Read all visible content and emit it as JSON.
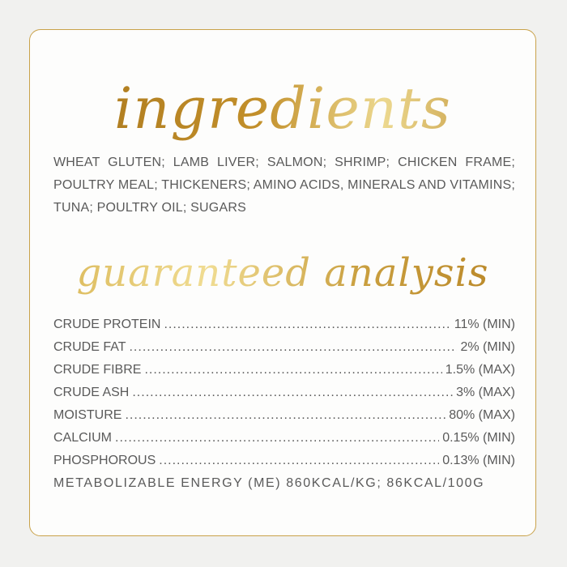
{
  "ingredients": {
    "title": "ingredients",
    "text": "WHEAT GLUTEN; LAMB LIVER; SALMON; SHRIMP; CHICKEN FRAME; POULTRY MEAL; THICKENERS; AMINO ACIDS, MINERALS AND VITAMINS; TUNA; POULTRY OIL; SUGARS"
  },
  "analysis": {
    "title": "guaranteed analysis",
    "rows": [
      {
        "label": "CRUDE PROTEIN",
        "value": "11% (MIN)"
      },
      {
        "label": "CRUDE FAT",
        "value": "2% (MIN)"
      },
      {
        "label": "CRUDE FIBRE",
        "value": "1.5% (MAX)"
      },
      {
        "label": "CRUDE ASH",
        "value": "3% (MAX)"
      },
      {
        "label": "MOISTURE",
        "value": "80% (MAX)"
      },
      {
        "label": "CALCIUM",
        "value": "0.15% (MIN)"
      },
      {
        "label": "PHOSPHOROUS",
        "value": "0.13% (MIN)"
      }
    ],
    "energy": "METABOLIZABLE ENERGY (ME) 860KCAL/KG; 86KCAL/100G"
  },
  "colors": {
    "gold": "#c9a24a",
    "text": "#5a5a5a"
  }
}
